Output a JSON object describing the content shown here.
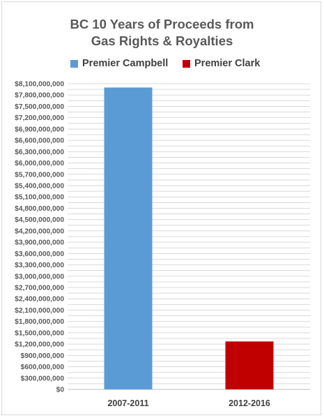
{
  "chart_data": {
    "type": "bar",
    "title_lines": [
      "BC 10 Years of Proceeds from",
      "Gas Rights & Royalties"
    ],
    "categories": [
      "2007-2011",
      "2012-2016"
    ],
    "series": [
      {
        "name": "Premier Campbell",
        "color": "#5b9bd5",
        "values": [
          8000000000,
          null
        ]
      },
      {
        "name": "Premier Clark",
        "color": "#c00000",
        "values": [
          null,
          1270000000
        ]
      }
    ],
    "legend_position": "top",
    "grid": true,
    "ylim": [
      0,
      8100000000
    ],
    "y_tick_step": 150000000,
    "y_tick_labels": [
      "$0",
      "$300,000,000",
      "$600,000,000",
      "$900,000,000",
      "$1,200,000,000",
      "$1,500,000,000",
      "$1,800,000,000",
      "$2,100,000,000",
      "$2,400,000,000",
      "$2,700,000,000",
      "$3,000,000,000",
      "$3,300,000,000",
      "$3,600,000,000",
      "$3,900,000,000",
      "$4,200,000,000",
      "$4,500,000,000",
      "$4,800,000,000",
      "$5,100,000,000",
      "$5,400,000,000",
      "$5,700,000,000",
      "$6,000,000,000",
      "$6,300,000,000",
      "$6,600,000,000",
      "$6,900,000,000",
      "$7,200,000,000",
      "$7,500,000,000",
      "$7,800,000,000",
      "$8,100,000,000"
    ]
  }
}
